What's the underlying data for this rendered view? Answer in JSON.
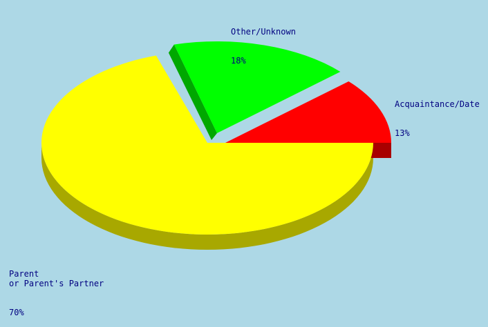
{
  "chart_data": {
    "type": "pie",
    "style": "3d-exploded",
    "labels": [
      "Parent\nor Parent's Partner",
      "Other/Unknown",
      "Acquaintance/Date"
    ],
    "values": [
      70,
      18,
      13
    ],
    "value_labels": [
      "70%",
      "18%",
      "13%"
    ],
    "colors": [
      "#ffff00",
      "#00ff00",
      "#ff0000"
    ],
    "side_colors": [
      "#a8a800",
      "#00a800",
      "#a80000"
    ],
    "label_color": "#000080",
    "background": "#add8e6",
    "legend": "none"
  }
}
